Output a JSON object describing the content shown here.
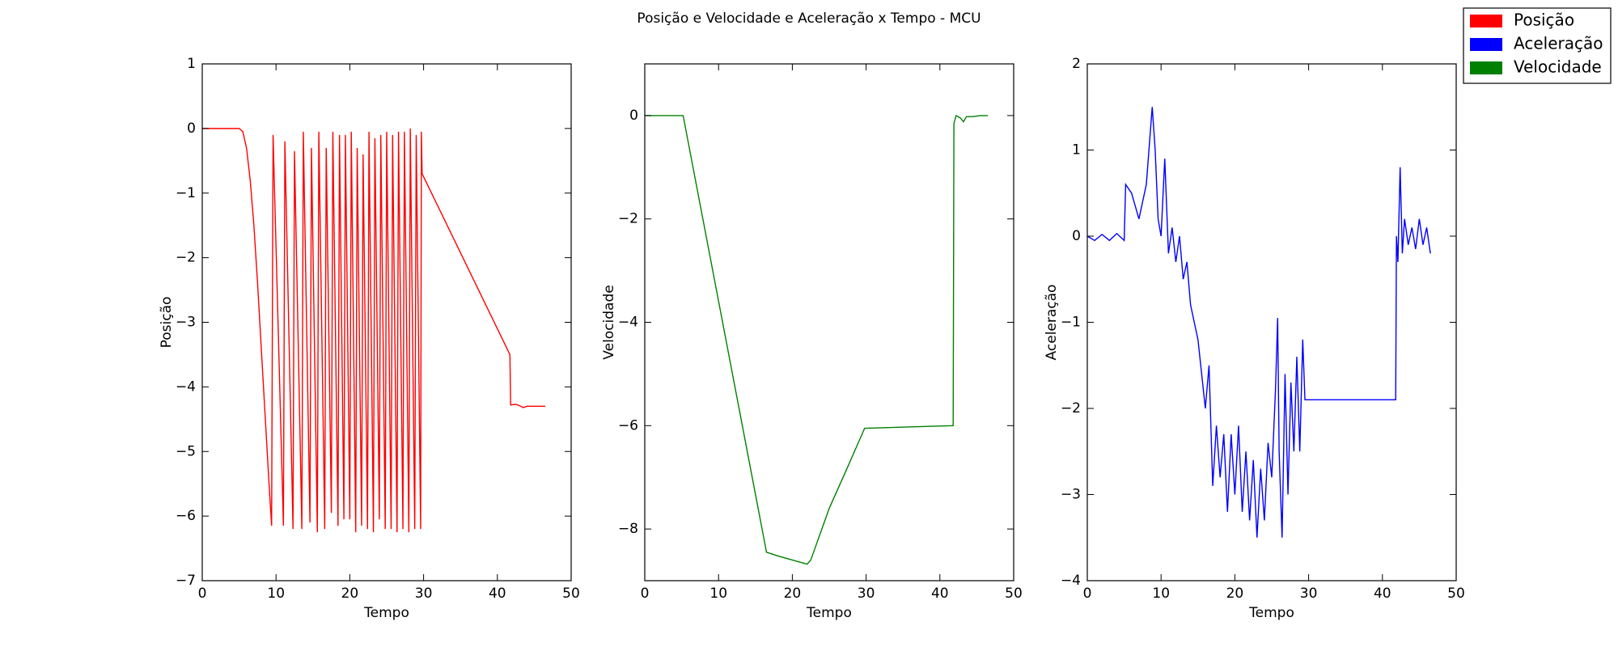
{
  "title": "Posição e Velocidade e Aceleração x Tempo - MCU",
  "chart_data": [
    {
      "type": "line",
      "xlabel": "Tempo",
      "ylabel": "Posição",
      "xlim": [
        0,
        50
      ],
      "xticks": [
        0,
        10,
        20,
        30,
        40,
        50
      ],
      "ylim": [
        -7,
        1
      ],
      "yticks": [
        {
          "value": -7,
          "label": "−7"
        },
        {
          "value": -6,
          "label": "−6"
        },
        {
          "value": -5,
          "label": "−5"
        },
        {
          "value": -4,
          "label": "−4"
        },
        {
          "value": -3,
          "label": "−3"
        },
        {
          "value": -2,
          "label": "−2"
        },
        {
          "value": -1,
          "label": "−1"
        },
        0,
        1
      ],
      "series": [
        {
          "name": "Posição",
          "color": "#ff0000",
          "x": [
            0,
            5,
            5.5,
            6,
            6.5,
            7,
            7.5,
            8,
            8.5,
            9,
            9.4,
            9.6,
            11.0,
            11.2,
            12.3,
            12.5,
            13.5,
            13.7,
            14.6,
            14.8,
            15.6,
            15.8,
            16.6,
            16.8,
            17.5,
            17.7,
            18.4,
            18.6,
            19.2,
            19.4,
            20.0,
            20.2,
            20.8,
            21.0,
            21.6,
            21.8,
            22.4,
            22.6,
            23.2,
            23.4,
            24.0,
            24.2,
            24.8,
            25.0,
            25.6,
            25.8,
            26.4,
            26.6,
            27.2,
            27.4,
            28.0,
            28.2,
            28.8,
            29.0,
            29.6,
            29.7,
            29.8,
            41.7,
            41.8,
            42.5,
            43,
            43.5,
            44,
            45,
            46.5
          ],
          "values": [
            0,
            0,
            -0.05,
            -0.3,
            -0.8,
            -1.5,
            -2.4,
            -3.4,
            -4.4,
            -5.4,
            -6.15,
            -0.1,
            -6.15,
            -0.2,
            -6.2,
            -0.35,
            -6.2,
            -0.05,
            -6.1,
            -0.3,
            -6.25,
            -0.05,
            -6.2,
            -0.3,
            -5.95,
            -0.05,
            -6.15,
            -0.1,
            -6.05,
            -0.1,
            -6.05,
            -0.05,
            -6.25,
            -0.3,
            -6.15,
            -0.4,
            -6.2,
            -0.05,
            -6.25,
            -0.15,
            -6.05,
            -0.1,
            -6.2,
            -0.05,
            -6.2,
            -0.1,
            -6.25,
            -0.05,
            -6.2,
            -0.05,
            -6.25,
            0,
            -6.2,
            -0.1,
            -6.2,
            -0.05,
            -0.7,
            -3.5,
            -4.28,
            -4.27,
            -4.29,
            -4.32,
            -4.3,
            -4.3,
            -4.3
          ]
        }
      ]
    },
    {
      "type": "line",
      "xlabel": "Tempo",
      "ylabel": "Velocidade",
      "xlim": [
        0,
        50
      ],
      "xticks": [
        0,
        10,
        20,
        30,
        40,
        50
      ],
      "ylim": [
        -9,
        1
      ],
      "yticks": [
        {
          "value": -8,
          "label": "−8"
        },
        {
          "value": -6,
          "label": "−6"
        },
        {
          "value": -4,
          "label": "−4"
        },
        {
          "value": -2,
          "label": "−2"
        },
        0
      ],
      "series": [
        {
          "name": "Velocidade",
          "color": "#008000",
          "x": [
            0,
            5.2,
            16.5,
            18,
            20,
            22,
            22.5,
            25,
            27.5,
            29.8,
            41.8,
            41.9,
            42.2,
            42.8,
            43.2,
            43.6,
            44.5,
            45.5,
            46.5
          ],
          "values": [
            0,
            0,
            -8.45,
            -8.52,
            -8.6,
            -8.68,
            -8.6,
            -7.6,
            -6.8,
            -6.05,
            -6.0,
            -0.15,
            0,
            -0.05,
            -0.12,
            -0.02,
            -0.02,
            0,
            0
          ]
        }
      ]
    },
    {
      "type": "line",
      "xlabel": "Tempo",
      "ylabel": "Aceleração",
      "xlim": [
        0,
        50
      ],
      "xticks": [
        0,
        10,
        20,
        30,
        40,
        50
      ],
      "ylim": [
        -4,
        2
      ],
      "yticks": [
        {
          "value": -4,
          "label": "−4"
        },
        {
          "value": -3,
          "label": "−3"
        },
        {
          "value": -2,
          "label": "−2"
        },
        {
          "value": -1,
          "label": "−1"
        },
        0,
        1,
        2
      ],
      "series": [
        {
          "name": "Aceleração",
          "color": "#0000ff",
          "x": [
            0,
            1,
            2,
            3,
            4,
            5,
            5.2,
            6,
            7,
            8,
            8.8,
            9.2,
            9.6,
            10,
            10.5,
            11,
            11.5,
            12,
            12.5,
            13,
            13.5,
            14,
            14.5,
            15,
            15.5,
            16,
            16.5,
            17,
            17.5,
            18,
            18.5,
            19,
            19.5,
            20,
            20.5,
            21,
            21.5,
            22,
            22.5,
            23,
            23.5,
            24,
            24.5,
            25,
            25.5,
            25.8,
            26,
            26.4,
            26.8,
            27.2,
            27.6,
            28,
            28.4,
            28.8,
            29.2,
            29.5,
            41.8,
            41.9,
            42.1,
            42.4,
            42.7,
            43,
            43.5,
            44,
            44.5,
            45,
            45.5,
            46,
            46.5
          ],
          "values": [
            0,
            -0.05,
            0.02,
            -0.05,
            0.03,
            -0.05,
            0.6,
            0.5,
            0.2,
            0.6,
            1.5,
            1.0,
            0.2,
            0.0,
            0.9,
            -0.2,
            0.1,
            -0.3,
            0.0,
            -0.5,
            -0.3,
            -0.8,
            -1.0,
            -1.2,
            -1.6,
            -2.0,
            -1.5,
            -2.9,
            -2.2,
            -2.8,
            -2.3,
            -3.2,
            -2.3,
            -3.0,
            -2.2,
            -3.2,
            -2.5,
            -3.3,
            -2.6,
            -3.5,
            -2.7,
            -3.3,
            -2.4,
            -2.8,
            -1.8,
            -0.95,
            -2.5,
            -3.5,
            -1.6,
            -3.0,
            -1.7,
            -2.5,
            -1.4,
            -2.5,
            -1.2,
            -1.9,
            -1.9,
            0.0,
            -0.3,
            0.8,
            -0.2,
            0.2,
            -0.1,
            0.1,
            -0.15,
            0.2,
            -0.1,
            0.1,
            -0.2
          ]
        }
      ]
    }
  ]
}
